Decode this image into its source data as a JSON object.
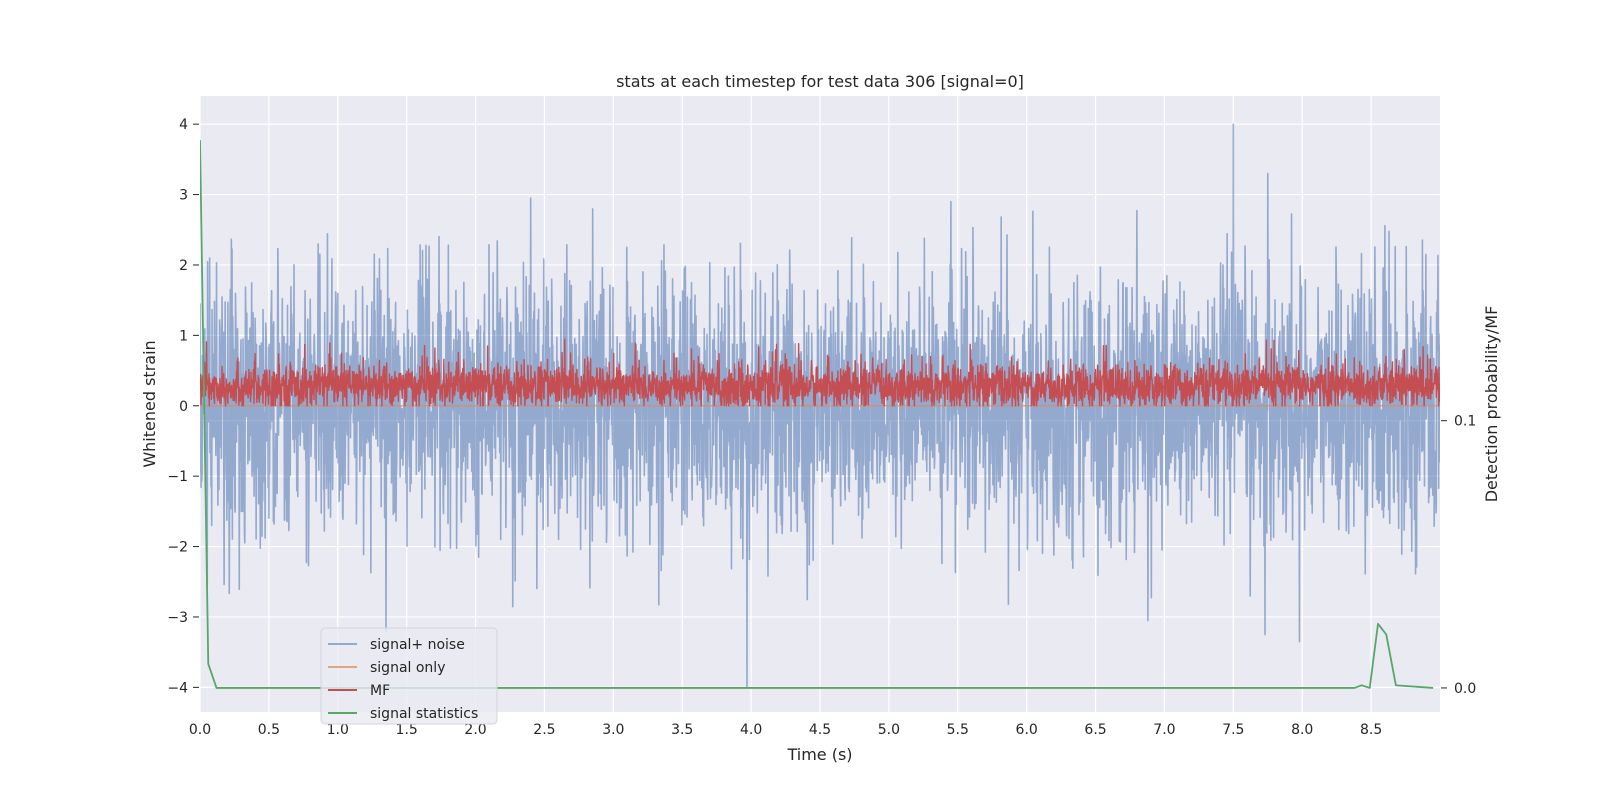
{
  "chart_data": {
    "type": "line",
    "title": "stats at each timestep for test data 306 [signal=0]",
    "xlabel": "Time (s)",
    "ylabel": "Whitened strain",
    "y2label": "Detection probability/MF",
    "xlim": [
      0.0,
      9.0
    ],
    "ylim": [
      -4.35,
      4.4
    ],
    "y2lim": [
      -0.009,
      0.2215
    ],
    "x_ticks": [
      "0.0",
      "0.5",
      "1.0",
      "1.5",
      "2.0",
      "2.5",
      "3.0",
      "3.5",
      "4.0",
      "4.5",
      "5.0",
      "5.5",
      "6.0",
      "6.5",
      "7.0",
      "7.5",
      "8.0",
      "8.5"
    ],
    "y_ticks": [
      "4",
      "3",
      "2",
      "1",
      "0",
      "−1",
      "−2",
      "−3",
      "−4"
    ],
    "y2_ticks": [
      "0.1",
      "0.0"
    ],
    "grid": true,
    "legend_placement": "lower-left",
    "series": [
      {
        "name": "signal+ noise",
        "color": "#4c72b0",
        "axis": "left",
        "kind": "noise",
        "x_range": [
          0.0,
          9.0
        ],
        "y_spikes": [
          {
            "x": 7.5,
            "y": 4.0
          },
          {
            "x": 7.75,
            "y": 3.3
          },
          {
            "x": 3.97,
            "y": -4.0
          },
          {
            "x": 1.35,
            "y": -3.2
          },
          {
            "x": 7.73,
            "y": -3.25
          },
          {
            "x": 7.98,
            "y": -3.35
          },
          {
            "x": 6.88,
            "y": -3.05
          },
          {
            "x": 2.4,
            "y": 2.95
          },
          {
            "x": 5.45,
            "y": 2.9
          }
        ]
      },
      {
        "name": "signal only",
        "color": "#dd8452",
        "axis": "left",
        "kind": "constant",
        "x": [
          0.0,
          9.0
        ],
        "y": [
          0.0,
          0.0
        ]
      },
      {
        "name": "MF",
        "color": "#c44e52",
        "axis": "left",
        "kind": "band",
        "x_range": [
          0.0,
          9.0
        ],
        "band": [
          0.0,
          0.65
        ]
      },
      {
        "name": "signal statistics",
        "color": "#55a868",
        "axis": "right",
        "kind": "line",
        "x": [
          0.0,
          0.06,
          0.12,
          8.38,
          8.43,
          8.49,
          8.55,
          8.61,
          8.68,
          8.95
        ],
        "y": [
          0.205,
          0.009,
          0.0,
          0.0,
          0.001,
          0.0,
          0.024,
          0.02,
          0.001,
          0.0
        ]
      }
    ]
  }
}
